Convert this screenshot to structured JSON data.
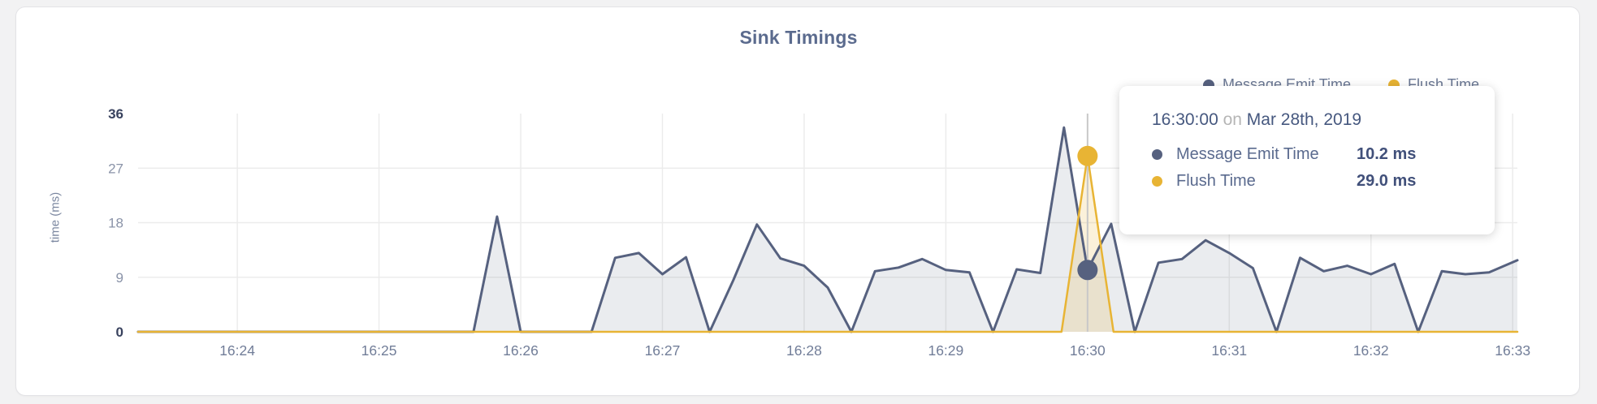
{
  "chart": {
    "title": "Sink Timings",
    "y_axis_label": "time (ms)"
  },
  "legend": {
    "items": [
      {
        "label": "Message Emit Time",
        "color": "#56617f"
      },
      {
        "label": "Flush Time",
        "color": "#e8b434"
      }
    ]
  },
  "tooltip": {
    "time": "16:30:00",
    "connector": "on",
    "date": "Mar 28th, 2019",
    "rows": [
      {
        "label": "Message Emit Time",
        "value": "10.2 ms",
        "color": "#56617f"
      },
      {
        "label": "Flush Time",
        "value": "29.0 ms",
        "color": "#e8b434"
      }
    ]
  },
  "hover": {
    "time": "16:30:00",
    "crosshair_color": "#c8c8c8",
    "points": [
      {
        "series": "Message Emit Time",
        "value": 10.2,
        "color": "#56617f"
      },
      {
        "series": "Flush Time",
        "value": 29.0,
        "color": "#e8b434"
      }
    ]
  },
  "chart_data": {
    "type": "area",
    "title": "Sink Timings",
    "ylabel": "time (ms)",
    "ylim": [
      0,
      36
    ],
    "y_ticks": [
      0,
      9,
      18,
      27,
      36
    ],
    "grid": true,
    "legend_position": "top-right",
    "x_range": [
      "16:23:18",
      "16:33:02"
    ],
    "x_ticks": [
      {
        "label": "16:24",
        "time": "16:24:00"
      },
      {
        "label": "16:25",
        "time": "16:25:00"
      },
      {
        "label": "16:26",
        "time": "16:26:00"
      },
      {
        "label": "16:27",
        "time": "16:27:00"
      },
      {
        "label": "16:28",
        "time": "16:28:00"
      },
      {
        "label": "16:29",
        "time": "16:29:00"
      },
      {
        "label": "16:30",
        "time": "16:30:00"
      },
      {
        "label": "16:31",
        "time": "16:31:00"
      },
      {
        "label": "16:32",
        "time": "16:32:00"
      },
      {
        "label": "16:33",
        "time": "16:33:00"
      }
    ],
    "series": [
      {
        "name": "Message Emit Time",
        "color": "#56617f",
        "fill": "rgba(86,97,127,0.12)",
        "line_width": 3,
        "points": [
          [
            "16:23:18",
            0
          ],
          [
            "16:25:40",
            0
          ],
          [
            "16:25:50",
            19.0
          ],
          [
            "16:26:00",
            0
          ],
          [
            "16:26:30",
            0
          ],
          [
            "16:26:40",
            12.2
          ],
          [
            "16:26:50",
            13.0
          ],
          [
            "16:27:00",
            9.5
          ],
          [
            "16:27:10",
            12.3
          ],
          [
            "16:27:20",
            0
          ],
          [
            "16:27:30",
            8.5
          ],
          [
            "16:27:40",
            17.7
          ],
          [
            "16:27:50",
            12.1
          ],
          [
            "16:28:00",
            10.9
          ],
          [
            "16:28:10",
            7.3
          ],
          [
            "16:28:20",
            0
          ],
          [
            "16:28:30",
            10.0
          ],
          [
            "16:28:40",
            10.6
          ],
          [
            "16:28:50",
            12.0
          ],
          [
            "16:29:00",
            10.2
          ],
          [
            "16:29:10",
            9.8
          ],
          [
            "16:29:20",
            0
          ],
          [
            "16:29:30",
            10.3
          ],
          [
            "16:29:40",
            9.7
          ],
          [
            "16:29:50",
            33.7
          ],
          [
            "16:30:00",
            10.2
          ],
          [
            "16:30:10",
            17.8
          ],
          [
            "16:30:20",
            0
          ],
          [
            "16:30:30",
            11.4
          ],
          [
            "16:30:40",
            12.0
          ],
          [
            "16:30:50",
            15.1
          ],
          [
            "16:31:00",
            13.0
          ],
          [
            "16:31:10",
            10.5
          ],
          [
            "16:31:20",
            0
          ],
          [
            "16:31:30",
            12.2
          ],
          [
            "16:31:40",
            10.0
          ],
          [
            "16:31:50",
            10.9
          ],
          [
            "16:32:00",
            9.5
          ],
          [
            "16:32:10",
            11.2
          ],
          [
            "16:32:20",
            0
          ],
          [
            "16:32:30",
            10.0
          ],
          [
            "16:32:40",
            9.5
          ],
          [
            "16:32:50",
            9.8
          ],
          [
            "16:33:02",
            11.8
          ]
        ]
      },
      {
        "name": "Flush Time",
        "color": "#e8b434",
        "fill": "rgba(232,180,52,0.18)",
        "line_width": 2.5,
        "points": [
          [
            "16:23:18",
            0
          ],
          [
            "16:29:49",
            0
          ],
          [
            "16:30:00",
            29.0
          ],
          [
            "16:30:11",
            0
          ],
          [
            "16:33:02",
            0
          ]
        ]
      }
    ]
  },
  "colors": {
    "grid": "#ececec",
    "card_background": "#ffffff",
    "page_background": "#f2f2f3",
    "title_text": "#5b6b8e",
    "axis_text": "#717d98",
    "axis_text_strong": "#39425e"
  }
}
